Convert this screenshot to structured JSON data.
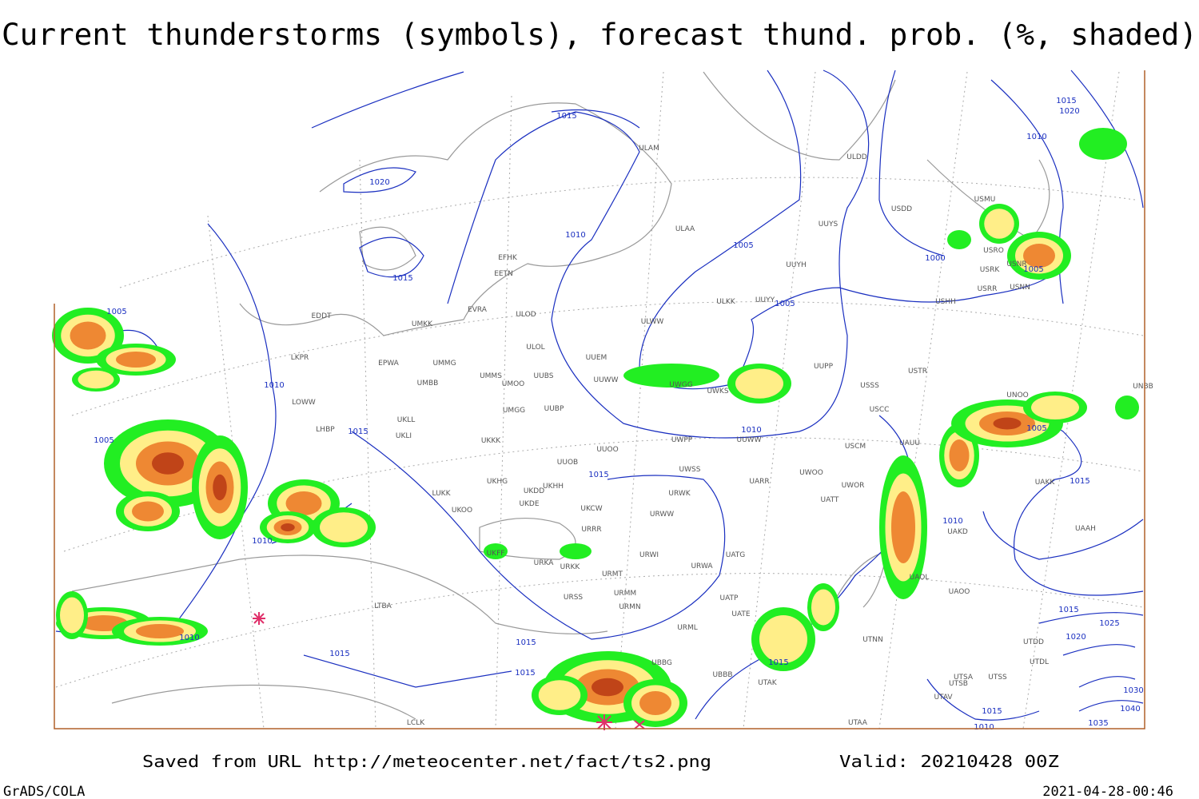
{
  "title": "Current thunderstorms (symbols), forecast thund. prob. (%, shaded)",
  "footer": {
    "source": "Saved from URL http://meteocenter.net/fact/ts2.png",
    "valid": "Valid: 20210428 00Z",
    "software": "GrADS/COLA",
    "timestamp": "2021-04-28-00:46"
  },
  "stations": [
    "EFHK",
    "EETN",
    "EVRA",
    "ULOD",
    "ULOL",
    "UMKK",
    "EDDT",
    "LKPR",
    "EPWA",
    "UMMG",
    "UMMS",
    "UMOO",
    "UUBS",
    "UMBB",
    "LOWW",
    "LHBP",
    "UKLL",
    "UKLI",
    "UMGG",
    "UUBP",
    "UKKK",
    "UUOO",
    "UUOB",
    "LUKK",
    "UKHG",
    "UKDD",
    "UKHH",
    "UKDE",
    "UKOO",
    "UKCW",
    "UKFF",
    "URKA",
    "URKK",
    "URRR",
    "URWI",
    "URMT",
    "URMM",
    "URSS",
    "URMN",
    "URML",
    "UATG",
    "URWA",
    "UATP",
    "UATE",
    "UBBB",
    "UUEM",
    "UUWW",
    "UWGG",
    "UWKS",
    "ULAM",
    "ULAA",
    "ULDD",
    "UUYS",
    "UUYH",
    "ULKK",
    "UUYY",
    "ULWW",
    "UUPP",
    "USSS",
    "USTR",
    "USCC",
    "USCM",
    "UAUU",
    "UWOO",
    "UWOR",
    "UATT",
    "UWPP",
    "UWSS",
    "UARR",
    "URWK",
    "URWW",
    "UAKD",
    "UAOL",
    "UAOO",
    "UTNN",
    "UTSA",
    "UTSS",
    "UTSB",
    "UTAV",
    "UTAA",
    "UTAK",
    "USDD",
    "USMU",
    "USRO",
    "USRK",
    "USNR",
    "USRR",
    "USNN",
    "USHH",
    "UNOO",
    "UNBB",
    "UAKK",
    "UAAH",
    "UTDD",
    "UTDL",
    "LCLK",
    "LTBA",
    "UBBG",
    "UUWW"
  ],
  "isobar_labels": [
    1015,
    1020,
    1015,
    1010,
    1005,
    1005,
    1000,
    1005,
    1010,
    1015,
    1020,
    1005,
    1010,
    1015,
    1005,
    1010,
    1015,
    1010,
    1005,
    1015,
    1010,
    1015,
    1020,
    1025,
    1030,
    1040,
    1035,
    1015,
    1015,
    1015,
    1015,
    1010,
    1015,
    1010
  ]
}
